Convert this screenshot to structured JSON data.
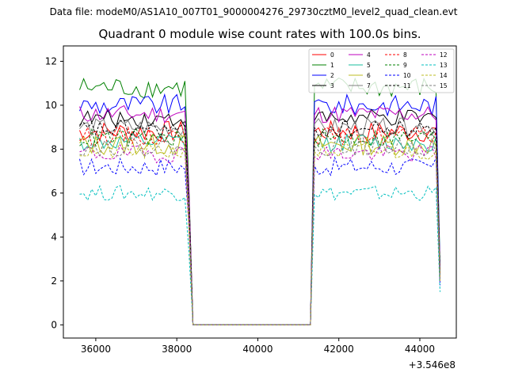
{
  "header": {
    "suptitle": "Data file: modeM0/AS1A10_007T01_9000004276_29730cztM0_level2_quad_clean.evt"
  },
  "chart_data": {
    "type": "line",
    "title": "Quadrant 0 module wise count rates with 100.0s bins.",
    "xlabel": "",
    "ylabel": "",
    "x_offset_label": "+3.546e8",
    "xlim": [
      35200,
      44900
    ],
    "ylim": [
      -0.6,
      12.7
    ],
    "xticks": [
      36000,
      38000,
      40000,
      42000,
      44000
    ],
    "yticks": [
      0,
      2,
      4,
      6,
      8,
      10,
      12
    ],
    "legend_position": "top-right",
    "bins_seconds": 100,
    "segments": [
      {
        "start": 35600,
        "end": 38200
      },
      {
        "start": 41400,
        "end": 44400
      }
    ],
    "gap": {
      "drop_start": 38300,
      "zero_start": 38400,
      "zero_end": 41300,
      "rise_end": 41400
    },
    "series": [
      {
        "name": "0",
        "color": "#ff0000",
        "dash": false,
        "level": 8.8,
        "amp": 0.35
      },
      {
        "name": "1",
        "color": "#008000",
        "dash": false,
        "level": 10.8,
        "amp": 0.35
      },
      {
        "name": "2",
        "color": "#0000ff",
        "dash": false,
        "level": 10.0,
        "amp": 0.35
      },
      {
        "name": "3",
        "color": "#000000",
        "dash": false,
        "level": 9.4,
        "amp": 0.3
      },
      {
        "name": "4",
        "color": "#bf00bf",
        "dash": false,
        "level": 9.6,
        "amp": 0.3
      },
      {
        "name": "5",
        "color": "#1abc9c",
        "dash": false,
        "level": 8.3,
        "amp": 0.3
      },
      {
        "name": "6",
        "color": "#bcbd22",
        "dash": false,
        "level": 8.2,
        "amp": 0.35
      },
      {
        "name": "7",
        "color": "#7f7f7f",
        "dash": false,
        "level": 9.0,
        "amp": 0.3
      },
      {
        "name": "8",
        "color": "#ff0000",
        "dash": true,
        "level": 8.6,
        "amp": 0.3
      },
      {
        "name": "9",
        "color": "#008000",
        "dash": true,
        "level": 8.5,
        "amp": 0.3
      },
      {
        "name": "10",
        "color": "#0000ff",
        "dash": true,
        "level": 7.2,
        "amp": 0.3
      },
      {
        "name": "11",
        "color": "#000000",
        "dash": true,
        "level": 8.9,
        "amp": 0.3
      },
      {
        "name": "12",
        "color": "#bf00bf",
        "dash": true,
        "level": 7.8,
        "amp": 0.3
      },
      {
        "name": "13",
        "color": "#00bfbf",
        "dash": true,
        "level": 6.0,
        "amp": 0.25
      },
      {
        "name": "14",
        "color": "#bcbd22",
        "dash": true,
        "level": 7.9,
        "amp": 0.3
      },
      {
        "name": "15",
        "color": "#7f7f7f",
        "dash": true,
        "level": 8.1,
        "amp": 0.3
      }
    ]
  }
}
